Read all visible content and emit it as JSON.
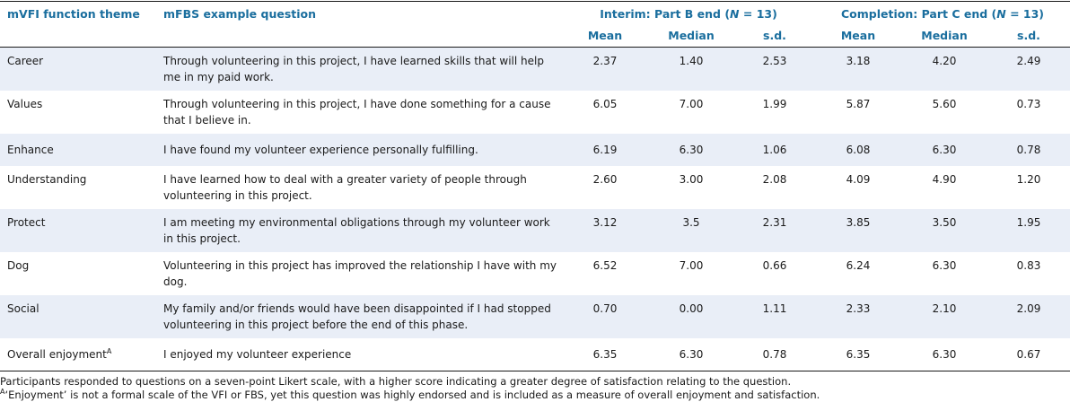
{
  "headers": {
    "col_theme": "mVFI function theme",
    "col_question": "mFBS example question",
    "group_interim_prefix": "Interim: Part B end (",
    "group_completion_prefix": "Completion: Part C end (",
    "n_symbol": "N",
    "n_value": " = 13)",
    "sub": [
      "Mean",
      "Median",
      "s.d.",
      "Mean",
      "Median",
      "s.d."
    ]
  },
  "rows": [
    {
      "theme": "Career",
      "question": "Through volunteering in this project, I have learned skills that will help me in my paid work.",
      "values": [
        "2.37",
        "1.40",
        "2.53",
        "3.18",
        "4.20",
        "2.49"
      ]
    },
    {
      "theme": "Values",
      "question": "Through volunteering in this project, I have done something for a cause that I believe in.",
      "values": [
        "6.05",
        "7.00",
        "1.99",
        "5.87",
        "5.60",
        "0.73"
      ]
    },
    {
      "theme": "Enhance",
      "question": "I have found my volunteer experience personally fulfilling.",
      "values": [
        "6.19",
        "6.30",
        "1.06",
        "6.08",
        "6.30",
        "0.78"
      ]
    },
    {
      "theme": "Understanding",
      "question": "I have learned how to deal with a greater variety of people through volunteering in this project.",
      "values": [
        "2.60",
        "3.00",
        "2.08",
        "4.09",
        "4.90",
        "1.20"
      ]
    },
    {
      "theme": "Protect",
      "question": "I am meeting my environmental obligations through my volunteer work in this project.",
      "values": [
        "3.12",
        "3.5",
        "2.31",
        "3.85",
        "3.50",
        "1.95"
      ]
    },
    {
      "theme": "Dog",
      "question": "Volunteering in this project has improved the relationship I have with my dog.",
      "values": [
        "6.52",
        "7.00",
        "0.66",
        "6.24",
        "6.30",
        "0.83"
      ]
    },
    {
      "theme": "Social",
      "question": "My family and/or friends would have been disappointed if I had stopped volunteering in this project before the end of this phase.",
      "values": [
        "0.70",
        "0.00",
        "1.11",
        "2.33",
        "2.10",
        "2.09"
      ]
    },
    {
      "theme": "Overall enjoyment",
      "theme_sup": "A",
      "question": "I enjoyed my volunteer experience",
      "values": [
        "6.35",
        "6.30",
        "0.78",
        "6.35",
        "6.30",
        "0.67"
      ]
    }
  ],
  "footnotes": {
    "note1": "Participants responded to questions on a seven-point Likert scale, with a higher score indicating a greater degree of satisfaction relating to the question.",
    "note2_marker": "A",
    "note2": "‘Enjoyment’ is not a formal scale of the VFI or FBS, yet this question was highly endorsed and is included as a measure of overall enjoyment and satisfaction."
  },
  "colors": {
    "header_blue": "#1a6e9e",
    "row_shade": "#e9eef7"
  }
}
